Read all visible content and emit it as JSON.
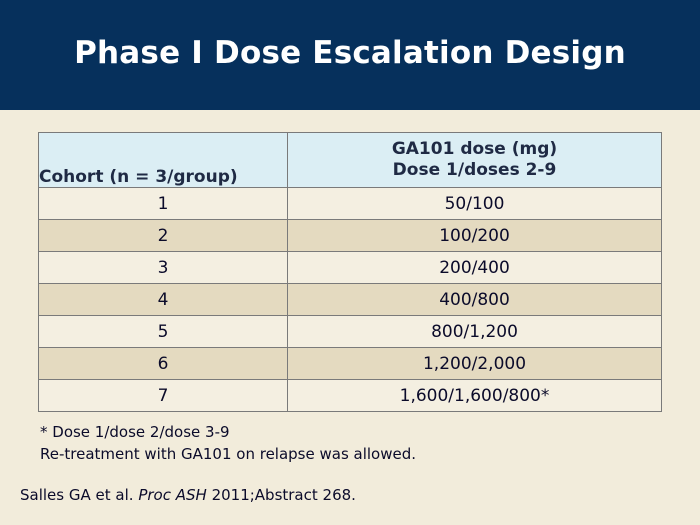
{
  "header": {
    "title": "Phase I Dose Escalation Design"
  },
  "table": {
    "headers": {
      "cohort": "Cohort (n = 3/group)",
      "dose_line1": "GA101 dose (mg)",
      "dose_line2": "Dose 1/doses 2-9"
    },
    "rows": [
      {
        "cohort": "1",
        "dose": "50/100"
      },
      {
        "cohort": "2",
        "dose": "100/200"
      },
      {
        "cohort": "3",
        "dose": "200/400"
      },
      {
        "cohort": "4",
        "dose": "400/800"
      },
      {
        "cohort": "5",
        "dose": "800/1,200"
      },
      {
        "cohort": "6",
        "dose": "1,200/2,000"
      },
      {
        "cohort": "7",
        "dose": "1,600/1,600/800*"
      }
    ]
  },
  "footnotes": {
    "asterisk": "* Dose 1/dose 2/dose 3-9",
    "retreatment": "Re-treatment with GA101 on relapse was allowed."
  },
  "citation": {
    "authors": "Salles GA et al.",
    "journal": "Proc ASH",
    "details": "2011;Abstract 268."
  },
  "colors": {
    "header_bg": "#06305c",
    "slide_bg": "#f2ecdb",
    "table_header_bg": "#dbeef4",
    "row_light": "#f4efe1",
    "row_dark": "#e4dac0"
  }
}
